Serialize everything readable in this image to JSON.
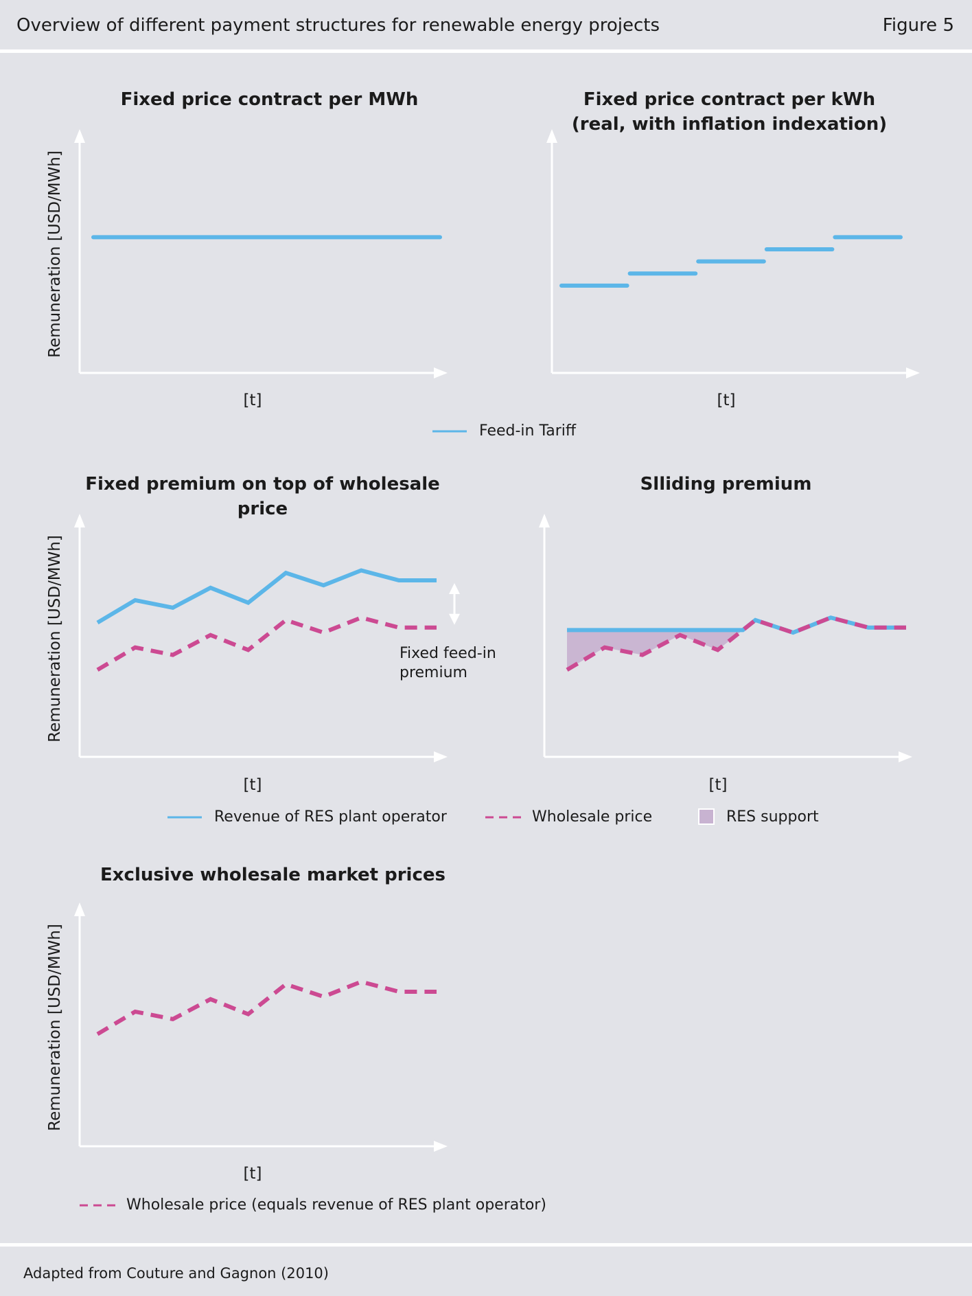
{
  "header": {
    "title": "Overview of different payment structures for renewable energy projects",
    "figure": "Figure 5"
  },
  "footer": {
    "source": "Adapted from Couture and Gagnon (2010)"
  },
  "colors": {
    "revenue": "#5cb6e8",
    "wholesale": "#cc4a92",
    "support": "#c8b3d1",
    "axis": "#ffffff",
    "background": "#e2e3e8"
  },
  "legends": {
    "fit": "Feed-in Tariff",
    "revenue": "Revenue of RES plant operator",
    "wholesale": "Wholesale price",
    "support": "RES support",
    "wholesale_only": "Wholesale price (equals revenue of RES plant operator)"
  },
  "chart_data": [
    {
      "type": "line",
      "title": "Fixed price contract per MWh",
      "xlabel": "[t]",
      "ylabel": "Remuneration [USD/MWh]",
      "x": [
        0,
        10
      ],
      "ylim": [
        0,
        10
      ],
      "series": [
        {
          "name": "Feed-in Tariff",
          "values": [
            5.6,
            5.6
          ]
        }
      ]
    },
    {
      "type": "line",
      "title": "Fixed price contract per kWh\n(real, with inflation indexation)",
      "xlabel": "[t]",
      "ylabel": "",
      "ylim": [
        0,
        10
      ],
      "steps": [
        {
          "x": [
            0,
            2
          ],
          "value": 3.6
        },
        {
          "x": [
            2,
            4
          ],
          "value": 4.1
        },
        {
          "x": [
            4,
            6
          ],
          "value": 4.6
        },
        {
          "x": [
            6,
            8
          ],
          "value": 5.1
        },
        {
          "x": [
            8,
            10
          ],
          "value": 5.6
        }
      ]
    },
    {
      "type": "line",
      "title": "Fixed premium on top of wholesale price",
      "xlabel": "[t]",
      "ylabel": "Remuneration [USD/MWh]",
      "annotation": "Fixed feed-in\npremium",
      "x": [
        0,
        1,
        2,
        3,
        4,
        5,
        6,
        7,
        8,
        9
      ],
      "ylim": [
        0,
        10
      ],
      "series": [
        {
          "name": "Revenue of RES plant operator",
          "values": [
            5.4,
            6.3,
            6.0,
            6.8,
            6.2,
            7.4,
            6.9,
            7.5,
            7.1,
            7.1
          ]
        },
        {
          "name": "Wholesale price",
          "values": [
            3.5,
            4.4,
            4.1,
            4.9,
            4.3,
            5.5,
            5.0,
            5.6,
            5.2,
            5.2
          ]
        }
      ]
    },
    {
      "type": "area",
      "title": "Slliding premium",
      "xlabel": "[t]",
      "ylabel": "",
      "x": [
        0,
        1,
        2,
        3,
        4,
        5,
        6,
        7,
        8,
        9
      ],
      "ylim": [
        0,
        10
      ],
      "series": [
        {
          "name": "Revenue of RES plant operator",
          "values": [
            5.1,
            5.1,
            5.1,
            5.1,
            5.1,
            5.5,
            5.0,
            5.6,
            5.2,
            5.2
          ]
        },
        {
          "name": "Wholesale price",
          "values": [
            3.5,
            4.4,
            4.1,
            4.9,
            4.3,
            5.5,
            5.0,
            5.6,
            5.2,
            5.2
          ]
        }
      ]
    },
    {
      "type": "line",
      "title": "Exclusive wholesale market prices",
      "xlabel": "[t]",
      "ylabel": "Remuneration [USD/MWh]",
      "x": [
        0,
        1,
        2,
        3,
        4,
        5,
        6,
        7,
        8,
        9
      ],
      "ylim": [
        0,
        10
      ],
      "series": [
        {
          "name": "Wholesale price (equals revenue of RES plant operator)",
          "values": [
            4.5,
            5.4,
            5.1,
            5.9,
            5.3,
            6.5,
            6.0,
            6.6,
            6.2,
            6.2
          ]
        }
      ]
    }
  ]
}
